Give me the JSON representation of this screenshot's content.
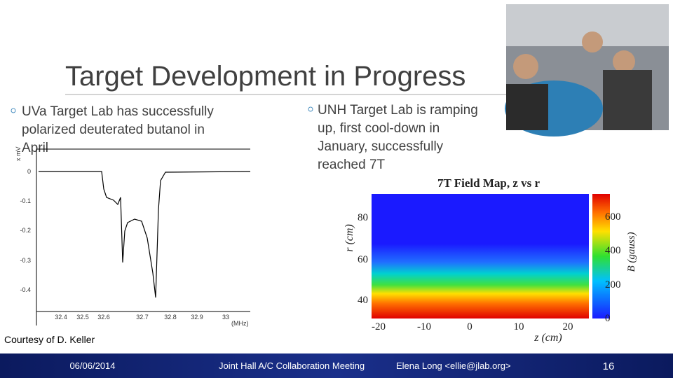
{
  "header": {
    "title": "Target Development in Progress"
  },
  "left": {
    "bullet": [
      "UVa Target Lab has successfully",
      "polarized deuterated butanol in",
      "April"
    ],
    "plot": {
      "y_label": "x mV",
      "yticks": [
        "0",
        "-0.1",
        "-0.2",
        "-0.3",
        "-0.4"
      ],
      "xticks": [
        "32.4",
        "32.5",
        "32.6",
        "32.7",
        "32.8",
        "32.9",
        "33"
      ],
      "x_unit": "(MHz)"
    },
    "credit": "Courtesy of D. Keller"
  },
  "right": {
    "bullet": [
      "UNH Target Lab is ramping",
      "up, first cool-down in",
      "January, successfully",
      "reached 7T"
    ],
    "plot": {
      "title": "7T Field Map, z vs r",
      "y_label": "r (cm)",
      "yticks": [
        "40",
        "60",
        "80"
      ],
      "xticks": [
        "-20",
        "-10",
        "0",
        "10",
        "20"
      ],
      "x_label": "z (cm)",
      "colorbar_ticks": [
        "0",
        "200",
        "400",
        "600"
      ],
      "colorbar_label": "B (gauss)"
    }
  },
  "footer": {
    "date": "06/06/2014",
    "meeting": "Joint Hall A/C Collaboration Meeting",
    "author": "Elena Long <ellie@jlab.org>",
    "page": "16"
  }
}
